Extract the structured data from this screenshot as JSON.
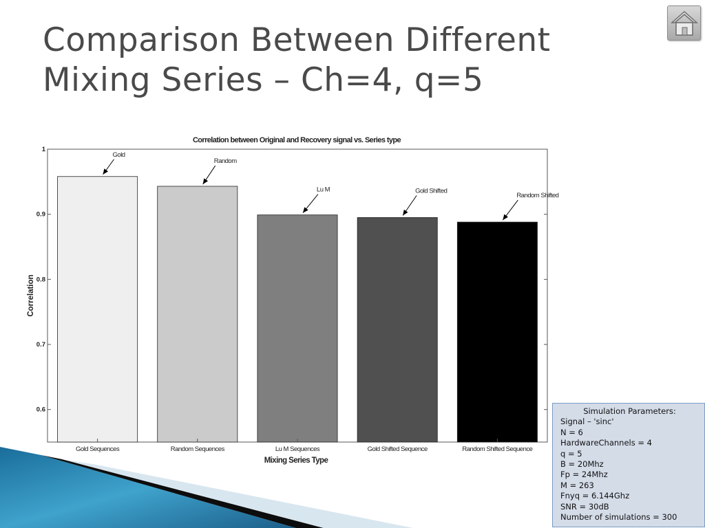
{
  "slide": {
    "title_line1": "Comparison Between Different",
    "title_line2": "Mixing Series – Ch=4, q=5"
  },
  "chart_data": {
    "type": "bar",
    "title": "Correlation between Original and Recovery signal vs. Series type",
    "xlabel": "Mixing Series Type",
    "ylabel": "Correlation",
    "categories": [
      "Gold Sequences",
      "Random Sequences",
      "Lu M Sequences",
      "Gold Shifted Sequence",
      "Random Shifted Sequence"
    ],
    "values": [
      0.958,
      0.943,
      0.899,
      0.895,
      0.888
    ],
    "bar_colors": [
      "#efefef",
      "#cbcbcb",
      "#7f7f7f",
      "#505050",
      "#000000"
    ],
    "annotations": [
      "Gold",
      "Random",
      "Lu M",
      "Gold Shifted",
      "Random Shifted"
    ],
    "ylim": [
      0.55,
      1.0
    ],
    "yticks": [
      "0.6",
      "0.7",
      "0.8",
      "0.9",
      "1"
    ],
    "grid": false
  },
  "params": {
    "title": "Simulation Parameters:",
    "lines": [
      "Signal – 'sinc'",
      "N = 6",
      "HardwareChannels = 4",
      "q = 5",
      "B = 20Mhz",
      "Fp = 24Mhz",
      "M = 263",
      "Fnyq = 6.144Ghz",
      "SNR = 30dB",
      "Number of simulations = 300"
    ]
  },
  "icons": {
    "home": "home-icon"
  }
}
